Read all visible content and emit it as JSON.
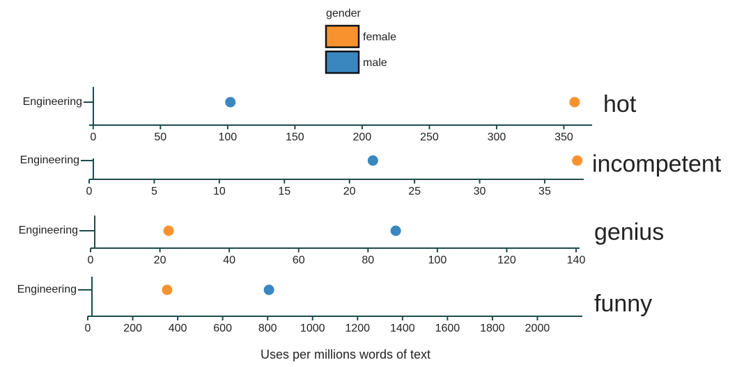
{
  "legend_title": "gender",
  "xlabel": "Uses per millions words of text",
  "chart_data": [
    {
      "type": "scatter",
      "label": "hot",
      "categories": [
        "Engineering"
      ],
      "series": [
        {
          "name": "female",
          "color": "#f8922f",
          "values": [
            358
          ]
        },
        {
          "name": "male",
          "color": "#3a87c0",
          "values": [
            102
          ]
        }
      ],
      "xlim": [
        -3,
        371
      ],
      "xticks": [
        0,
        50,
        100,
        150,
        200,
        250,
        300,
        350
      ]
    },
    {
      "type": "scatter",
      "label": "incompetent",
      "categories": [
        "Engineering"
      ],
      "series": [
        {
          "name": "female",
          "color": "#f8922f",
          "values": [
            37.5
          ]
        },
        {
          "name": "male",
          "color": "#3a87c0",
          "values": [
            21.8
          ]
        }
      ],
      "xlim": [
        0,
        38
      ],
      "xticks": [
        0,
        5,
        10,
        15,
        20,
        25,
        30,
        35
      ]
    },
    {
      "type": "scatter",
      "label": "genius",
      "categories": [
        "Engineering"
      ],
      "series": [
        {
          "name": "female",
          "color": "#f8922f",
          "values": [
            22.5
          ]
        },
        {
          "name": "male",
          "color": "#3a87c0",
          "values": [
            88
          ]
        }
      ],
      "xlim": [
        0,
        141
      ],
      "xticks": [
        0,
        20,
        40,
        60,
        80,
        100,
        120,
        140
      ]
    },
    {
      "type": "scatter",
      "label": "funny",
      "categories": [
        "Engineering"
      ],
      "series": [
        {
          "name": "female",
          "color": "#f8922f",
          "values": [
            353
          ]
        },
        {
          "name": "male",
          "color": "#3a87c0",
          "values": [
            806
          ]
        }
      ],
      "xlim": [
        0,
        2200
      ],
      "xticks": [
        0,
        200,
        400,
        600,
        800,
        1000,
        1200,
        1400,
        1600,
        1800,
        2000
      ]
    }
  ]
}
